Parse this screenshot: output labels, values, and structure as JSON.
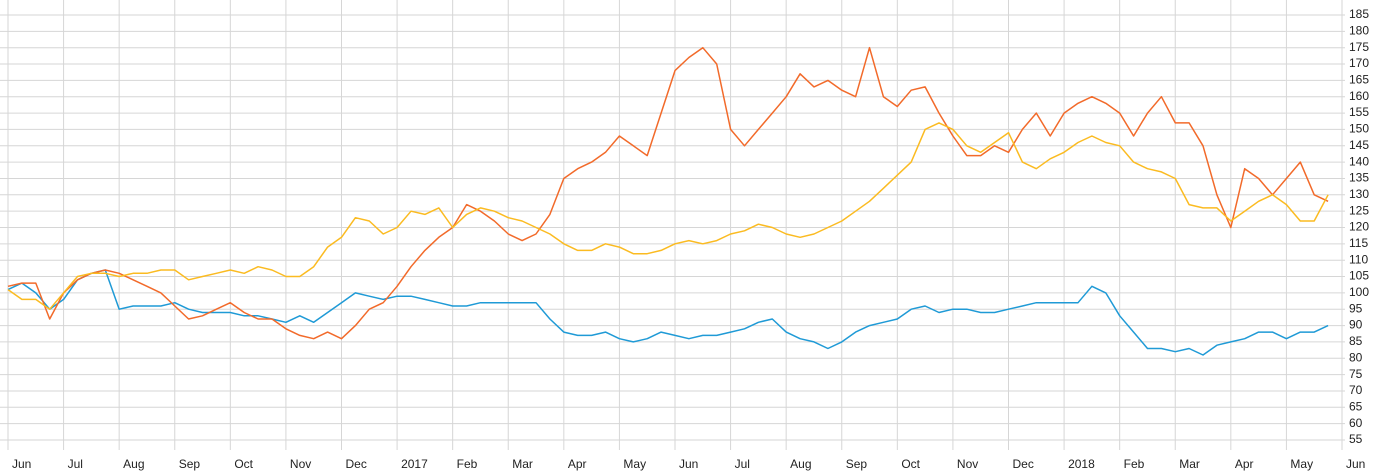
{
  "chart_data": {
    "type": "line",
    "categories": [
      "Jun",
      null,
      null,
      null,
      "Jul",
      null,
      null,
      null,
      "Aug",
      null,
      null,
      null,
      "Sep",
      null,
      null,
      null,
      "Oct",
      null,
      null,
      null,
      "Nov",
      null,
      null,
      null,
      "Dec",
      null,
      null,
      null,
      "2017",
      null,
      null,
      null,
      "Feb",
      null,
      null,
      null,
      "Mar",
      null,
      null,
      null,
      "Apr",
      null,
      null,
      null,
      "May",
      null,
      null,
      null,
      "Jun",
      null,
      null,
      null,
      "Jul",
      null,
      null,
      null,
      "Aug",
      null,
      null,
      null,
      "Sep",
      null,
      null,
      null,
      "Oct",
      null,
      null,
      null,
      "Nov",
      null,
      null,
      null,
      "Dec",
      null,
      null,
      null,
      "2018",
      null,
      null,
      null,
      "Feb",
      null,
      null,
      null,
      "Mar",
      null,
      null,
      null,
      "Apr",
      null,
      null,
      null,
      "May",
      null,
      null,
      null,
      "Jun"
    ],
    "series": [
      {
        "color": "#1f9ad6",
        "values": [
          101,
          103,
          100,
          95,
          98,
          104,
          106,
          107,
          95,
          96,
          96,
          96,
          97,
          95,
          94,
          94,
          94,
          93,
          93,
          92,
          91,
          93,
          91,
          94,
          97,
          100,
          99,
          98,
          99,
          99,
          98,
          97,
          96,
          96,
          97,
          97,
          97,
          97,
          97,
          92,
          88,
          87,
          87,
          88,
          86,
          85,
          86,
          88,
          87,
          86,
          87,
          87,
          88,
          89,
          91,
          92,
          88,
          86,
          85,
          83,
          85,
          88,
          90,
          91,
          92,
          95,
          96,
          94,
          95,
          95,
          94,
          94,
          95,
          96,
          97,
          97,
          97,
          97,
          102,
          100,
          93,
          88,
          83,
          83,
          82,
          83,
          81,
          84,
          85,
          86,
          88,
          88,
          86,
          88,
          88,
          90,
          null
        ]
      },
      {
        "color": "#f26a2a",
        "values": [
          102,
          103,
          103,
          92,
          100,
          104,
          106,
          107,
          106,
          104,
          102,
          100,
          96,
          92,
          93,
          95,
          97,
          94,
          92,
          92,
          89,
          87,
          86,
          88,
          86,
          90,
          95,
          97,
          102,
          108,
          113,
          117,
          120,
          127,
          125,
          122,
          118,
          116,
          118,
          124,
          135,
          138,
          140,
          143,
          148,
          145,
          142,
          155,
          168,
          172,
          175,
          170,
          150,
          145,
          150,
          155,
          160,
          167,
          163,
          165,
          162,
          160,
          175,
          160,
          157,
          162,
          163,
          155,
          148,
          142,
          142,
          145,
          143,
          150,
          155,
          148,
          155,
          158,
          160,
          158,
          155,
          148,
          155,
          160,
          152,
          152,
          145,
          130,
          120,
          138,
          135,
          130,
          135,
          140,
          130,
          128,
          null
        ]
      },
      {
        "color": "#fbbb21",
        "values": [
          101,
          98,
          98,
          95,
          100,
          105,
          106,
          106,
          105,
          106,
          106,
          107,
          107,
          104,
          105,
          106,
          107,
          106,
          108,
          107,
          105,
          105,
          108,
          114,
          117,
          123,
          122,
          118,
          120,
          125,
          124,
          126,
          120,
          124,
          126,
          125,
          123,
          122,
          120,
          118,
          115,
          113,
          113,
          115,
          114,
          112,
          112,
          113,
          115,
          116,
          115,
          116,
          118,
          119,
          121,
          120,
          118,
          117,
          118,
          120,
          122,
          125,
          128,
          132,
          136,
          140,
          150,
          152,
          150,
          145,
          143,
          146,
          149,
          140,
          138,
          141,
          143,
          146,
          148,
          146,
          145,
          140,
          138,
          137,
          135,
          127,
          126,
          126,
          122,
          125,
          128,
          130,
          127,
          122,
          122,
          130,
          null
        ]
      }
    ],
    "ylim": [
      55,
      185
    ],
    "yticks": [
      55,
      60,
      65,
      70,
      75,
      80,
      85,
      90,
      95,
      100,
      105,
      110,
      115,
      120,
      125,
      130,
      135,
      140,
      145,
      150,
      155,
      160,
      165,
      170,
      175,
      180,
      185
    ],
    "grid": true
  }
}
